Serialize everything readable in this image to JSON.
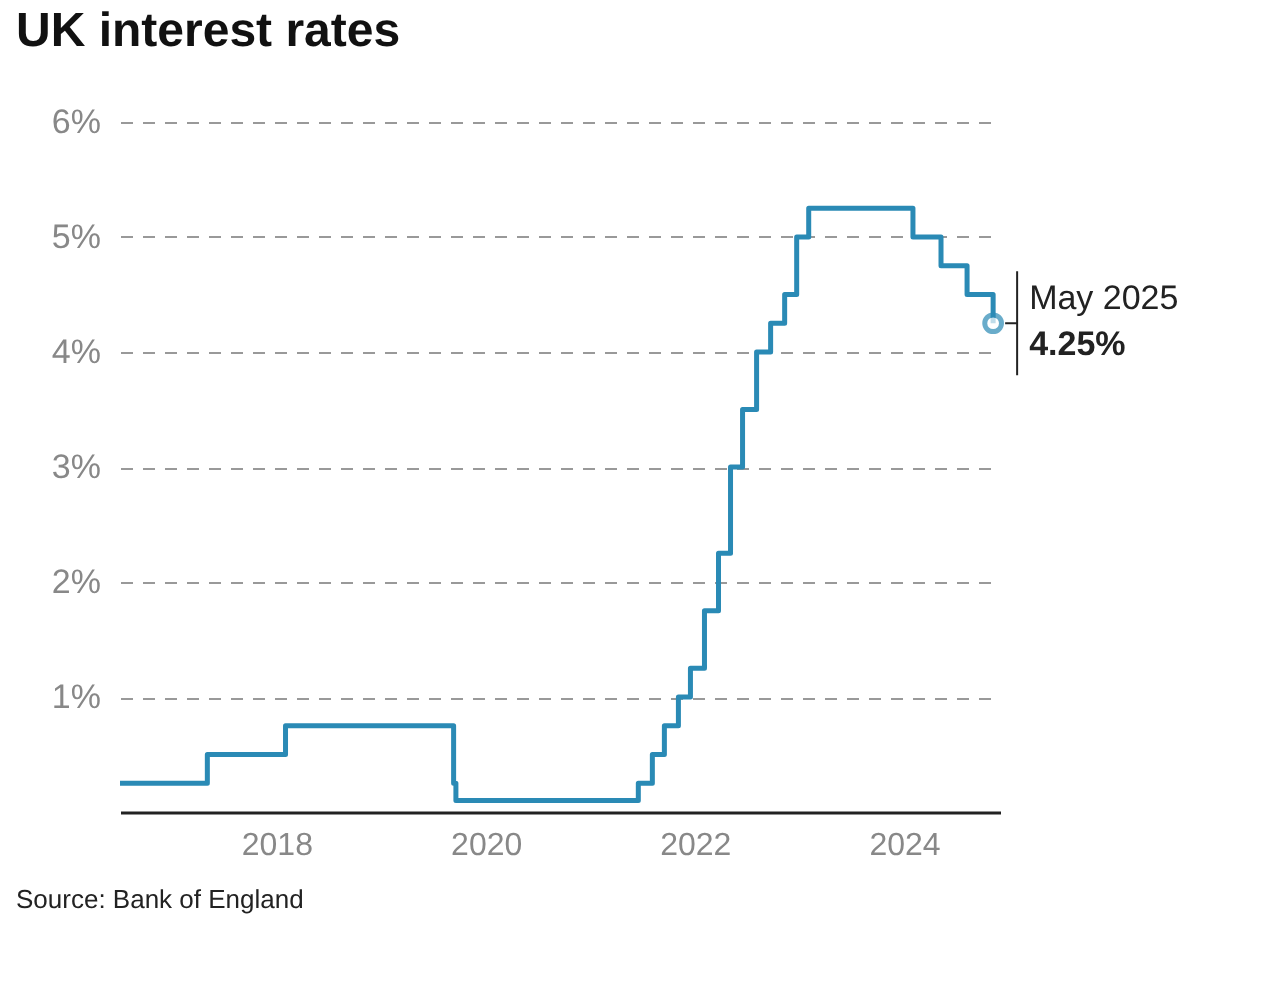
{
  "chart_data": {
    "type": "step",
    "title": "UK interest rates",
    "x": [
      "2017-01-01",
      "2017-11-02",
      "2018-08-02",
      "2020-03-11",
      "2020-03-19",
      "2021-12-16",
      "2022-02-03",
      "2022-03-17",
      "2022-05-05",
      "2022-06-16",
      "2022-08-04",
      "2022-09-22",
      "2022-11-03",
      "2022-12-15",
      "2023-02-02",
      "2023-03-23",
      "2023-05-11",
      "2023-06-22",
      "2023-08-03",
      "2024-08-01",
      "2024-11-07",
      "2025-02-06",
      "2025-05-08"
    ],
    "series": [
      {
        "color": "#2a8ab5",
        "values": [
          0.25,
          0.5,
          0.75,
          0.25,
          0.1,
          0.25,
          0.5,
          0.75,
          1.0,
          1.25,
          1.75,
          2.25,
          3.0,
          3.5,
          4.0,
          4.25,
          4.5,
          5.0,
          5.25,
          5.0,
          4.75,
          4.5,
          4.25
        ]
      }
    ],
    "xlim": [
      "2017-01-01",
      "2025-06-01"
    ],
    "xticks": [
      {
        "value": "2018-07-01",
        "label": "2018"
      },
      {
        "value": "2020-07-01",
        "label": "2020"
      },
      {
        "value": "2022-07-01",
        "label": "2022"
      },
      {
        "value": "2024-07-01",
        "label": "2024"
      }
    ],
    "ylim": [
      0,
      6
    ],
    "yticks": [
      {
        "value": 1,
        "label": "1%"
      },
      {
        "value": 2,
        "label": "2%"
      },
      {
        "value": 3,
        "label": "3%"
      },
      {
        "value": 4,
        "label": "4%"
      },
      {
        "value": 5,
        "label": "5%"
      },
      {
        "value": 6,
        "label": "6%"
      }
    ],
    "grid": "y",
    "marker": "none",
    "line_style": "solid",
    "annotations": [
      {
        "text": "May 2025",
        "x": "2025-05-08",
        "y": 4.25
      },
      {
        "text": "4.25%",
        "x": "2025-05-08",
        "y": 4.25
      },
      "Source: Bank of England"
    ]
  }
}
